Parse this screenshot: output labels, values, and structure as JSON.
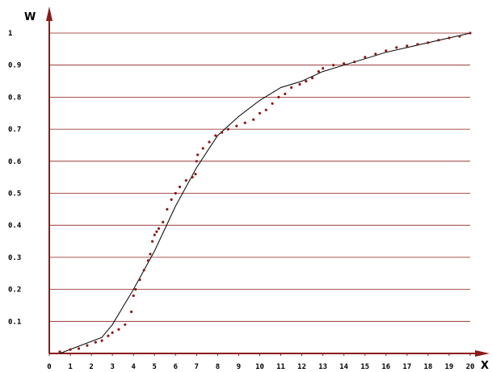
{
  "chart_data": {
    "type": "line",
    "xlabel": "X",
    "ylabel": "W",
    "xlim": [
      0,
      20
    ],
    "ylim": [
      0,
      1
    ],
    "x_ticks": [
      "0",
      "1",
      "2",
      "3",
      "4",
      "5",
      "6",
      "7",
      "8",
      "9",
      "10",
      "11",
      "12",
      "13",
      "14",
      "15",
      "16",
      "17",
      "18",
      "19",
      "20"
    ],
    "y_ticks": [
      "0.1",
      "0.2",
      "0.3",
      "0.4",
      "0.5",
      "0.6",
      "0.7",
      "0.8",
      "0.9",
      "1"
    ],
    "grid": "horizontal",
    "series": [
      {
        "style": "solid",
        "x": [
          0.5,
          2.5,
          3.0,
          4.0,
          5.0,
          6.0,
          7.0,
          8.0,
          9.0,
          10.0,
          11.0,
          12.0,
          13.0,
          14.0,
          15.0,
          16.0,
          17.0,
          18.0,
          19.0,
          20.0
        ],
        "y": [
          0.0,
          0.05,
          0.09,
          0.2,
          0.32,
          0.46,
          0.58,
          0.68,
          0.74,
          0.79,
          0.83,
          0.85,
          0.88,
          0.9,
          0.92,
          0.94,
          0.955,
          0.97,
          0.985,
          1.0
        ]
      },
      {
        "style": "dotted",
        "x": [
          0.5,
          1.0,
          1.4,
          1.8,
          2.2,
          2.5,
          2.8,
          3.0,
          3.3,
          3.6,
          3.9,
          4.0,
          4.1,
          4.3,
          4.5,
          4.7,
          4.8,
          4.9,
          5.0,
          5.1,
          5.2,
          5.4,
          5.6,
          5.8,
          6.0,
          6.2,
          6.5,
          6.8,
          6.95,
          7.0,
          7.05,
          7.3,
          7.6,
          7.9,
          8.2,
          8.5,
          8.9,
          9.3,
          9.7,
          10.0,
          10.3,
          10.6,
          10.9,
          11.2,
          11.5,
          11.9,
          12.2,
          12.5,
          12.8,
          13.0,
          13.5,
          14.0,
          14.5,
          15.0,
          15.5,
          16.0,
          16.5,
          17.0,
          17.5,
          18.0,
          18.5,
          19.0,
          19.5,
          20.0
        ],
        "y": [
          0.005,
          0.012,
          0.015,
          0.025,
          0.035,
          0.04,
          0.055,
          0.065,
          0.075,
          0.09,
          0.13,
          0.18,
          0.2,
          0.23,
          0.26,
          0.29,
          0.31,
          0.35,
          0.37,
          0.38,
          0.39,
          0.41,
          0.45,
          0.48,
          0.5,
          0.52,
          0.54,
          0.55,
          0.56,
          0.6,
          0.62,
          0.64,
          0.66,
          0.68,
          0.69,
          0.7,
          0.71,
          0.72,
          0.73,
          0.75,
          0.76,
          0.78,
          0.8,
          0.81,
          0.83,
          0.84,
          0.85,
          0.86,
          0.88,
          0.89,
          0.9,
          0.905,
          0.91,
          0.925,
          0.935,
          0.945,
          0.955,
          0.96,
          0.965,
          0.97,
          0.978,
          0.985,
          0.99,
          1.0
        ]
      }
    ],
    "colors": {
      "axis": "#8b1a1a",
      "grid": "#8b1a1a",
      "curve": "#000000",
      "points": "#8b1a1a"
    }
  }
}
